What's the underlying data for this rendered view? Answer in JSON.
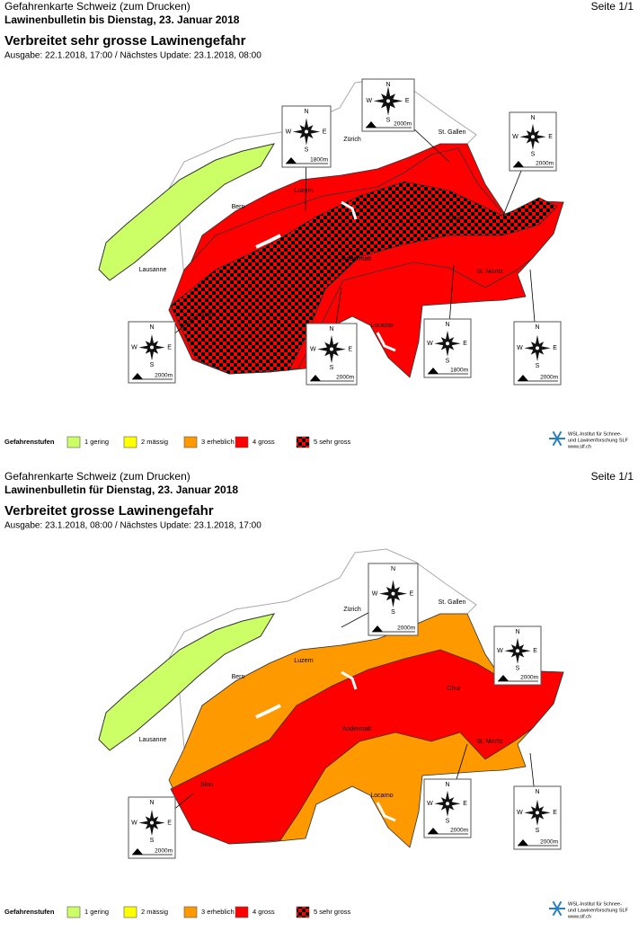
{
  "pages": [
    {
      "header": "Gefahrenkarte Schweiz (zum Drucken)",
      "bulletin": "Lawinenbulletin bis Dienstag, 23. Januar 2018",
      "page_no": "Seite 1/1",
      "title": "Verbreitet sehr grosse Lawinengefahr",
      "subtitle": "Ausgabe: 22.1.2018, 17:00 / Nächstes Update: 23.1.2018, 08:00",
      "compass_boxes": [
        {
          "elevation": "1800m"
        },
        {
          "elevation": "2000m"
        },
        {
          "elevation": "2000m"
        },
        {
          "elevation": "2000m"
        },
        {
          "elevation": "2000m"
        },
        {
          "elevation": "1800m"
        },
        {
          "elevation": "2000m"
        }
      ]
    },
    {
      "header": "Gefahrenkarte Schweiz (zum Drucken)",
      "bulletin": "Lawinenbulletin für Dienstag, 23. Januar 2018",
      "page_no": "Seite 1/1",
      "title": "Verbreitet grosse Lawinengefahr",
      "subtitle": "Ausgabe: 23.1.2018, 08:00 / Nächstes Update: 23.1.2018, 17:00",
      "compass_boxes": [
        {
          "elevation": "2000m"
        },
        {
          "elevation": "2000m"
        },
        {
          "elevation": "2000m"
        },
        {
          "elevation": "2000m"
        },
        {
          "elevation": "2000m"
        }
      ]
    }
  ],
  "cities": [
    "Zürich",
    "St. Gallen",
    "Luzern",
    "Bern",
    "Chur",
    "Andermatt",
    "Lausanne",
    "St. Moritz",
    "Sion",
    "Locarno"
  ],
  "compass": {
    "n": "N",
    "e": "E",
    "s": "S",
    "w": "W"
  },
  "legend": {
    "title": "Gefahrenstufen",
    "items": [
      {
        "label": "1 gering",
        "color": "#ccff66"
      },
      {
        "label": "2 mässig",
        "color": "#ffff00"
      },
      {
        "label": "3 erheblich",
        "color": "#ff9900"
      },
      {
        "label": "4 gross",
        "color": "#ff0000"
      },
      {
        "label": "5 sehr gross",
        "color": "checker"
      }
    ]
  },
  "institute": [
    "WSL-Institut für Schnee-",
    "und Lawinenforschung SLF",
    "www.slf.ch"
  ]
}
